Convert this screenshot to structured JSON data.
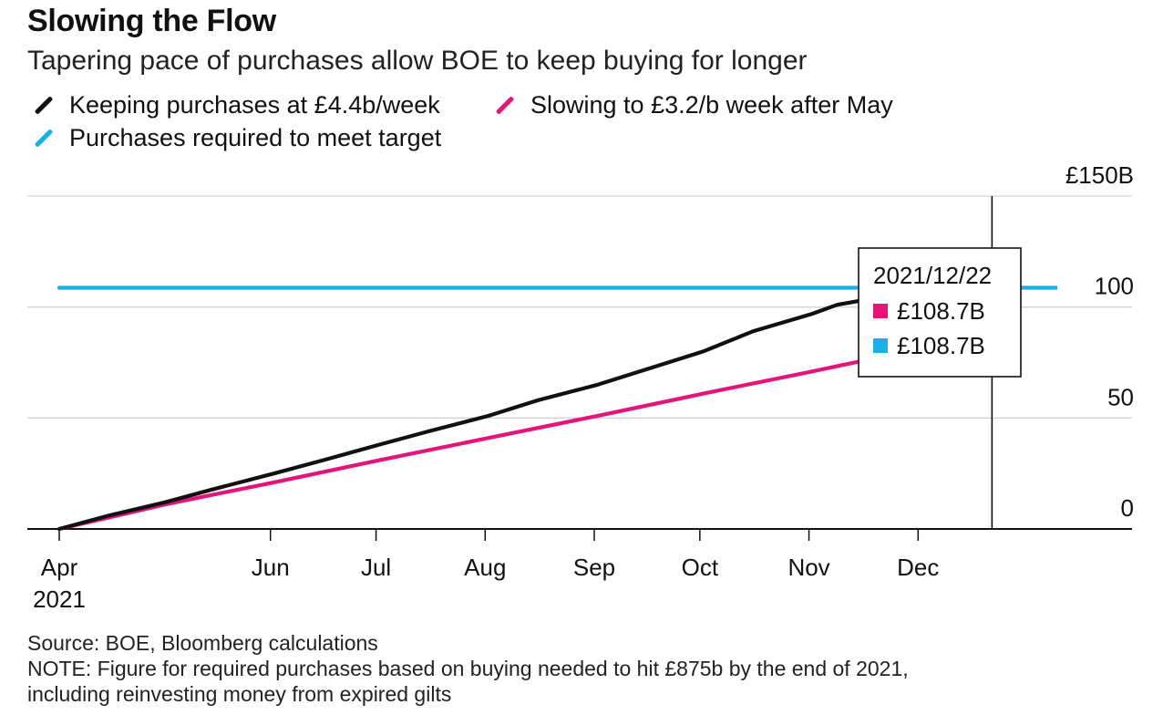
{
  "title": "Slowing the Flow",
  "subtitle": "Tapering pace of purchases allow BOE to keep buying for longer",
  "footer": {
    "source": "Source: BOE, Bloomberg calculations",
    "note1": "NOTE: Figure for required purchases based on buying needed to hit £875b by the end of 2021,",
    "note2": "including reinvesting money from expired gilts"
  },
  "colors": {
    "black": "#111111",
    "pink": "#e4157a",
    "blue": "#16b0ea",
    "grid": "#cfd3db"
  },
  "tooltip": {
    "date": "2021/12/22",
    "items": [
      {
        "label": "£108.7B",
        "color": "#e4157a"
      },
      {
        "label": "£108.7B",
        "color": "#16b0ea"
      }
    ]
  },
  "chart_data": {
    "type": "line",
    "title": "Slowing the Flow",
    "ylim": [
      0,
      150
    ],
    "y_ticks": [
      {
        "value": 150,
        "label": "£150B"
      },
      {
        "value": 100,
        "label": "100"
      },
      {
        "value": 50,
        "label": "50"
      },
      {
        "value": 0,
        "label": "0"
      }
    ],
    "x_range": [
      "2021-04-01",
      "2022-01-01"
    ],
    "x_ticks": [
      {
        "date": "2021-04-01",
        "label": "Apr",
        "sub": "2021"
      },
      {
        "date": "2021-05-31",
        "label": "Jun",
        "sub": ""
      },
      {
        "date": "2021-06-30",
        "label": "Jul",
        "sub": ""
      },
      {
        "date": "2021-07-31",
        "label": "Aug",
        "sub": ""
      },
      {
        "date": "2021-08-31",
        "label": "Sep",
        "sub": ""
      },
      {
        "date": "2021-09-30",
        "label": "Oct",
        "sub": ""
      },
      {
        "date": "2021-10-31",
        "label": "Nov",
        "sub": ""
      },
      {
        "date": "2021-12-01",
        "label": "Dec",
        "sub": ""
      }
    ],
    "cursor_date": "2021-12-22",
    "legend_placement": "top-left",
    "grid": true,
    "series": [
      {
        "name": "Keeping purchases at £4.4b/week",
        "color": "#111111",
        "points": [
          [
            "2021-04-01",
            0
          ],
          [
            "2021-04-15",
            6
          ],
          [
            "2021-05-01",
            12
          ],
          [
            "2021-05-15",
            18
          ],
          [
            "2021-06-01",
            25
          ],
          [
            "2021-06-15",
            31
          ],
          [
            "2021-07-01",
            38
          ],
          [
            "2021-07-15",
            44
          ],
          [
            "2021-08-01",
            51
          ],
          [
            "2021-08-15",
            58
          ],
          [
            "2021-09-01",
            65
          ],
          [
            "2021-09-15",
            72
          ],
          [
            "2021-10-01",
            80
          ],
          [
            "2021-10-15",
            89
          ],
          [
            "2021-11-01",
            97
          ],
          [
            "2021-11-08",
            101
          ],
          [
            "2021-11-15",
            103
          ],
          [
            "2021-11-20",
            108.7
          ]
        ]
      },
      {
        "name": "Slowing to £3.2/b week after May",
        "color": "#e4157a",
        "points": [
          [
            "2021-04-01",
            0
          ],
          [
            "2021-05-01",
            11
          ],
          [
            "2021-06-01",
            21
          ],
          [
            "2021-07-01",
            31
          ],
          [
            "2021-08-01",
            41
          ],
          [
            "2021-09-01",
            51
          ],
          [
            "2021-10-01",
            61
          ],
          [
            "2021-11-01",
            71
          ],
          [
            "2021-12-01",
            81
          ],
          [
            "2021-12-22",
            108.7
          ]
        ]
      },
      {
        "name": "Purchases required to meet target",
        "color": "#16b0ea",
        "points": [
          [
            "2021-04-01",
            108.7
          ],
          [
            "2022-01-01",
            108.7
          ]
        ]
      }
    ]
  }
}
